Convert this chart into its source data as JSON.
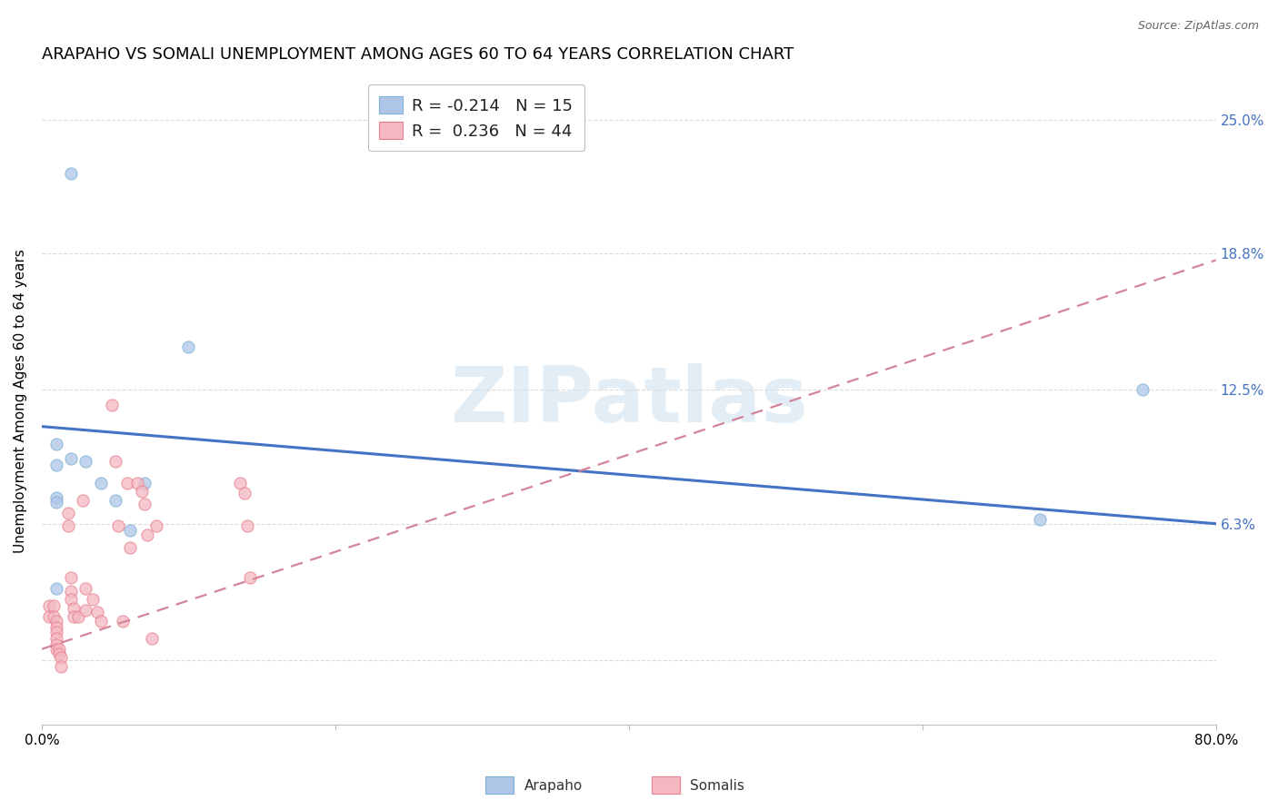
{
  "title": "ARAPAHO VS SOMALI UNEMPLOYMENT AMONG AGES 60 TO 64 YEARS CORRELATION CHART",
  "source": "Source: ZipAtlas.com",
  "ylabel": "Unemployment Among Ages 60 to 64 years",
  "xlim": [
    0.0,
    0.8
  ],
  "ylim": [
    -0.03,
    0.27
  ],
  "yticks": [
    0.0,
    0.063,
    0.125,
    0.188,
    0.25
  ],
  "xticks": [
    0.0,
    0.2,
    0.4,
    0.6,
    0.8
  ],
  "xtick_labels": [
    "0.0%",
    "",
    "",
    "",
    "80.0%"
  ],
  "right_ytick_labels": [
    "25.0%",
    "18.8%",
    "12.5%",
    "6.3%",
    ""
  ],
  "right_ytick_vals": [
    0.25,
    0.188,
    0.125,
    0.063,
    0.0
  ],
  "legend_entries": [
    {
      "color": "#aec6e8",
      "label": "Arapaho",
      "R": "-0.214",
      "N": "15",
      "edgecolor": "#7bafd4"
    },
    {
      "color": "#f4b8c1",
      "label": "Somalis",
      "R": "0.236",
      "N": "44",
      "edgecolor": "#e87f8f"
    }
  ],
  "arapaho_x": [
    0.02,
    0.01,
    0.01,
    0.01,
    0.01,
    0.02,
    0.03,
    0.04,
    0.05,
    0.07,
    0.06,
    0.1,
    0.75,
    0.68,
    0.01
  ],
  "arapaho_y": [
    0.225,
    0.1,
    0.09,
    0.075,
    0.073,
    0.093,
    0.092,
    0.082,
    0.074,
    0.082,
    0.06,
    0.145,
    0.125,
    0.065,
    0.033
  ],
  "somali_x": [
    0.005,
    0.005,
    0.008,
    0.008,
    0.01,
    0.01,
    0.01,
    0.01,
    0.01,
    0.01,
    0.012,
    0.012,
    0.013,
    0.013,
    0.018,
    0.018,
    0.02,
    0.02,
    0.02,
    0.022,
    0.022,
    0.025,
    0.028,
    0.03,
    0.03,
    0.035,
    0.038,
    0.04,
    0.048,
    0.05,
    0.052,
    0.055,
    0.058,
    0.06,
    0.065,
    0.068,
    0.07,
    0.072,
    0.075,
    0.078,
    0.135,
    0.138,
    0.14,
    0.142
  ],
  "somali_y": [
    0.025,
    0.02,
    0.025,
    0.02,
    0.018,
    0.015,
    0.013,
    0.01,
    0.007,
    0.005,
    0.005,
    0.003,
    0.001,
    -0.003,
    0.068,
    0.062,
    0.038,
    0.032,
    0.028,
    0.024,
    0.02,
    0.02,
    0.074,
    0.033,
    0.023,
    0.028,
    0.022,
    0.018,
    0.118,
    0.092,
    0.062,
    0.018,
    0.082,
    0.052,
    0.082,
    0.078,
    0.072,
    0.058,
    0.01,
    0.062,
    0.082,
    0.077,
    0.062,
    0.038
  ],
  "arapaho_trendline_x": [
    0.0,
    0.8
  ],
  "arapaho_trendline_y": [
    0.108,
    0.063
  ],
  "somali_trendline_x": [
    0.0,
    0.8
  ],
  "somali_trendline_y": [
    0.005,
    0.185
  ],
  "arapaho_color": "#aec6e8",
  "arapaho_edgecolor": "#7bafd4",
  "somali_color": "#f4b8c1",
  "somali_edgecolor": "#e87f8f",
  "trendline_blue": "#4472c4",
  "trendline_pink": "#d4849a",
  "watermark_text": "ZIPatlas",
  "watermark_color": "#cfe2f0",
  "background_color": "#ffffff",
  "grid_color": "#cccccc",
  "title_fontsize": 13,
  "axis_label_fontsize": 11,
  "tick_fontsize": 11,
  "scatter_size": 90,
  "scatter_alpha": 0.75
}
